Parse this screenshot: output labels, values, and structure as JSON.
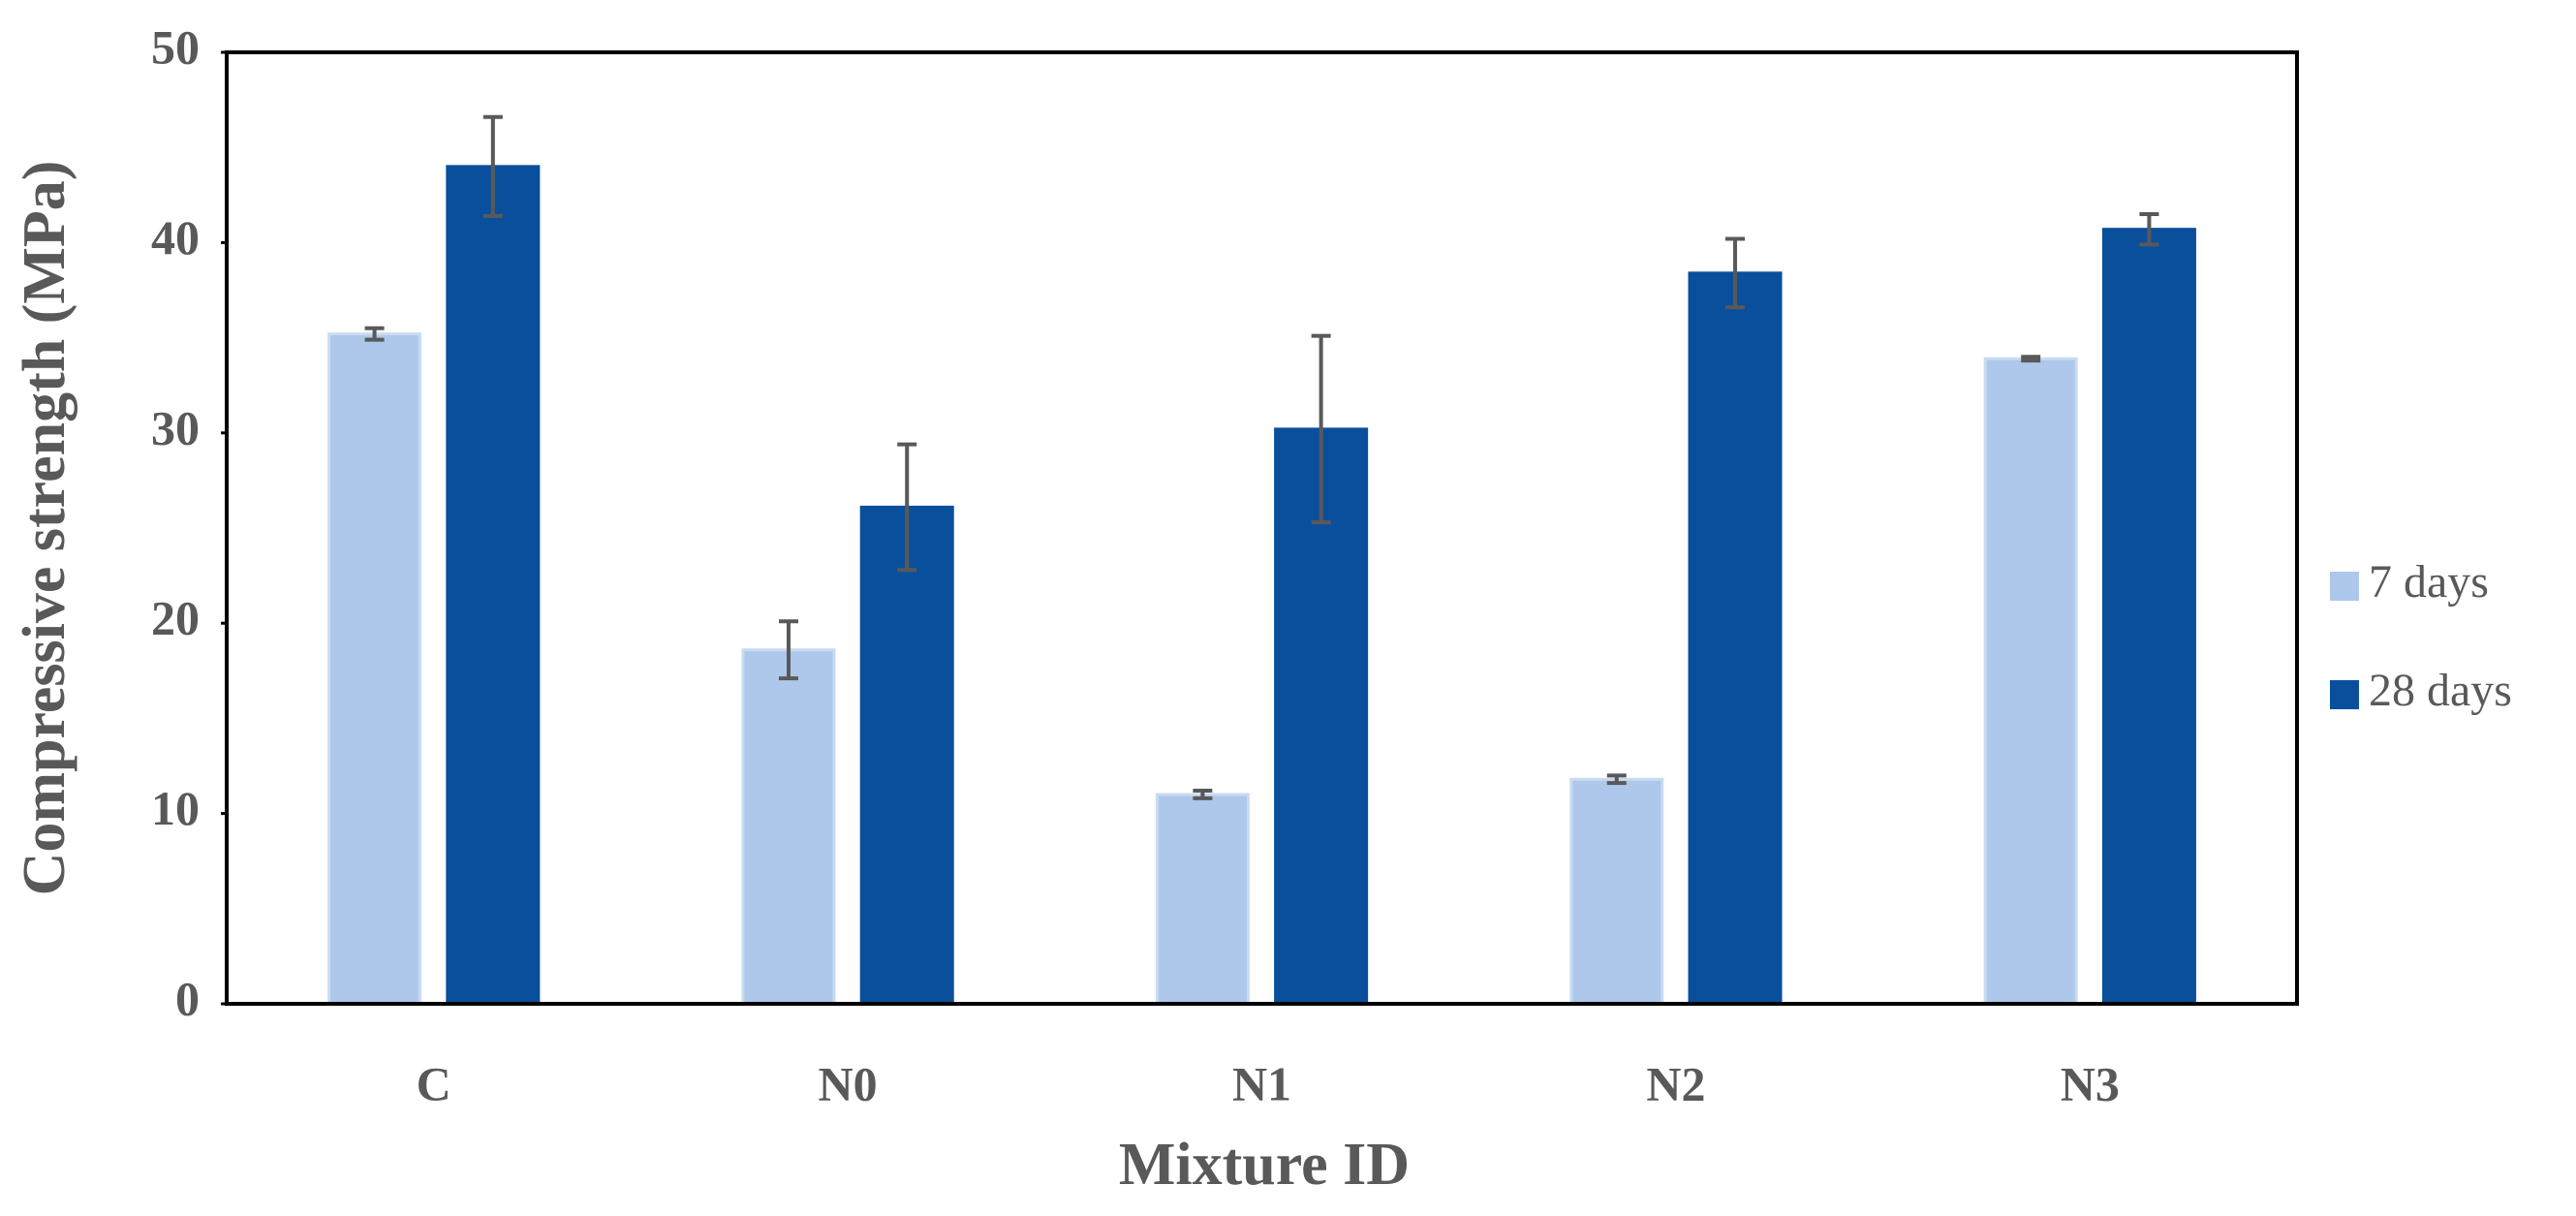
{
  "chart_data": {
    "type": "bar",
    "x_label": "Mixture ID",
    "y_label": "Compressive strength (MPa)",
    "categories": [
      "C",
      "N0",
      "N1",
      "N2",
      "N3"
    ],
    "series": [
      {
        "name": "7 days",
        "color": "#adc8ea",
        "values": [
          35.2,
          18.6,
          11.0,
          11.8,
          33.9
        ],
        "errors": [
          0.3,
          1.5,
          0.2,
          0.2,
          0.1
        ]
      },
      {
        "name": "28 days",
        "color": "#0a4f9c",
        "values": [
          44.0,
          26.1,
          30.2,
          38.4,
          40.7
        ],
        "errors": [
          2.6,
          3.3,
          4.9,
          1.8,
          0.8
        ]
      }
    ],
    "ylim": [
      0,
      50
    ],
    "yticks": [
      0,
      10,
      20,
      30,
      40,
      50
    ],
    "grid": false,
    "legend": "right"
  }
}
